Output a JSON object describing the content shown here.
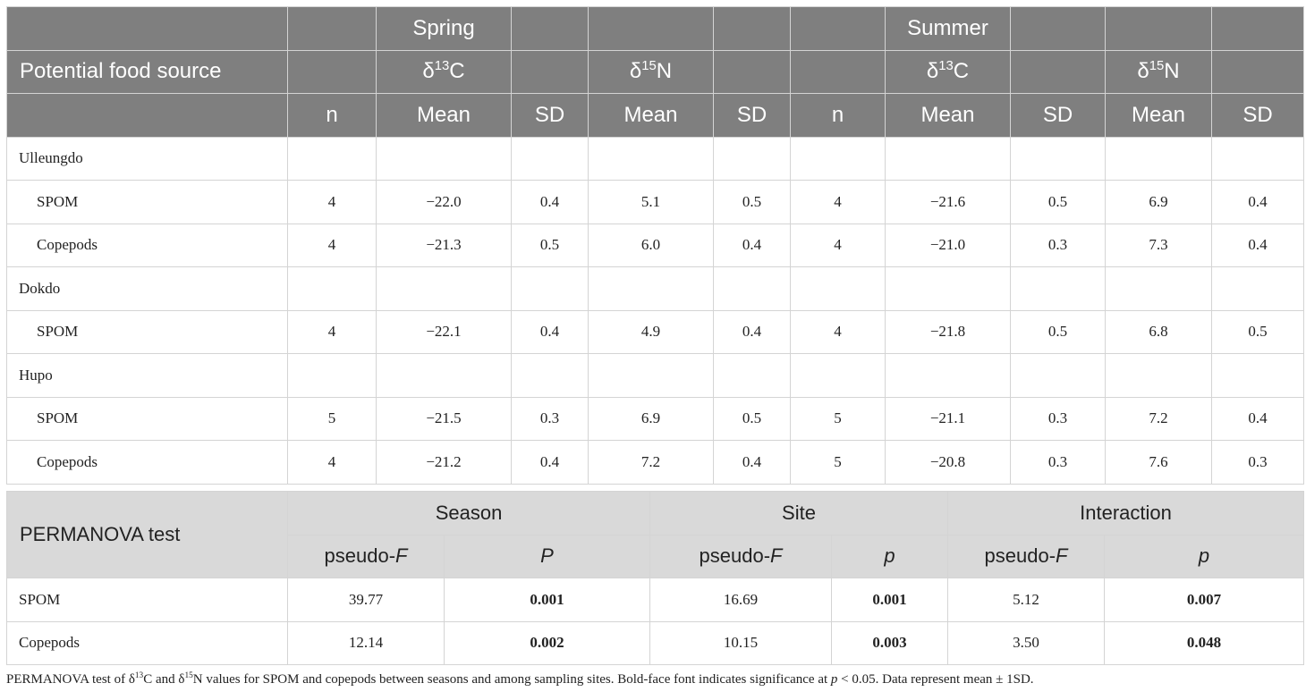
{
  "header": {
    "spring": "Spring",
    "summer": "Summer",
    "food_source": "Potential food source",
    "delta_symbol": "δ",
    "c_mass": "13",
    "c_elem": "C",
    "n_mass": "15",
    "n_elem": "N",
    "n": "n",
    "mean": "Mean",
    "sd": "SD"
  },
  "sites": [
    {
      "name": "Ulleungdo",
      "rows": [
        {
          "source": "SPOM",
          "sp_n": "4",
          "sp_c_mean": "−22.0",
          "sp_c_sd": "0.4",
          "sp_n_mean": "5.1",
          "sp_n_sd": "0.5",
          "su_n": "4",
          "su_c_mean": "−21.6",
          "su_c_sd": "0.5",
          "su_n_mean": "6.9",
          "su_n_sd": "0.4"
        },
        {
          "source": "Copepods",
          "sp_n": "4",
          "sp_c_mean": "−21.3",
          "sp_c_sd": "0.5",
          "sp_n_mean": "6.0",
          "sp_n_sd": "0.4",
          "su_n": "4",
          "su_c_mean": "−21.0",
          "su_c_sd": "0.3",
          "su_n_mean": "7.3",
          "su_n_sd": "0.4"
        }
      ]
    },
    {
      "name": "Dokdo",
      "rows": [
        {
          "source": "SPOM",
          "sp_n": "4",
          "sp_c_mean": "−22.1",
          "sp_c_sd": "0.4",
          "sp_n_mean": "4.9",
          "sp_n_sd": "0.4",
          "su_n": "4",
          "su_c_mean": "−21.8",
          "su_c_sd": "0.5",
          "su_n_mean": "6.8",
          "su_n_sd": "0.5"
        }
      ]
    },
    {
      "name": "Hupo",
      "rows": [
        {
          "source": "SPOM",
          "sp_n": "5",
          "sp_c_mean": "−21.5",
          "sp_c_sd": "0.3",
          "sp_n_mean": "6.9",
          "sp_n_sd": "0.5",
          "su_n": "5",
          "su_c_mean": "−21.1",
          "su_c_sd": "0.3",
          "su_n_mean": "7.2",
          "su_n_sd": "0.4"
        },
        {
          "source": "Copepods",
          "sp_n": "4",
          "sp_c_mean": "−21.2",
          "sp_c_sd": "0.4",
          "sp_n_mean": "7.2",
          "sp_n_sd": "0.4",
          "su_n": "5",
          "su_c_mean": "−20.8",
          "su_c_sd": "0.3",
          "su_n_mean": "7.6",
          "su_n_sd": "0.3"
        }
      ]
    }
  ],
  "permanova": {
    "title": "PERMANOVA test",
    "season": "Season",
    "site": "Site",
    "interaction": "Interaction",
    "pseudo": "pseudo-",
    "f": "F",
    "season_p": "P",
    "site_p": "p",
    "interaction_p": "p",
    "rows": [
      {
        "source": "SPOM",
        "season_f": "39.77",
        "season_p": "0.001",
        "site_f": "16.69",
        "site_p": "0.001",
        "int_f": "5.12",
        "int_p": "0.007"
      },
      {
        "source": "Copepods",
        "season_f": "12.14",
        "season_p": "0.002",
        "site_f": "10.15",
        "site_p": "0.003",
        "int_f": "3.50",
        "int_p": "0.048"
      }
    ]
  },
  "footnote": {
    "part1": "PERMANOVA test of δ",
    "c_mass": "13",
    "part2": "C and δ",
    "n_mass": "15",
    "part3": "N values for SPOM and copepods between seasons and among sampling sites. Bold-face font indicates significance at ",
    "p": "p",
    "part4": " < 0.05. Data represent mean ± 1SD."
  },
  "colors": {
    "header_bg": "#7f7f7f",
    "permanova_header_bg": "#d9d9d9",
    "grid": "#d4d4d4"
  }
}
